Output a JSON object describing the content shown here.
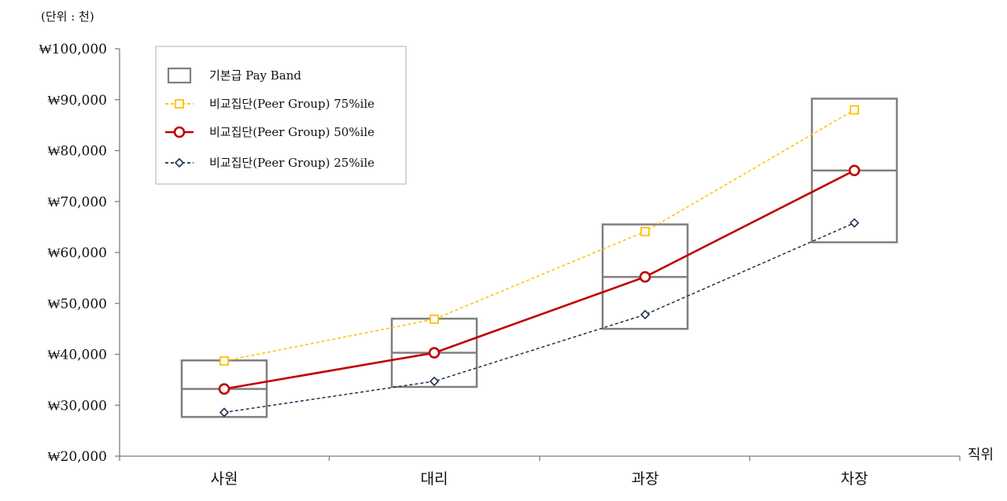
{
  "chart_data": {
    "type": "line",
    "unit_label": "(단위 : 천)",
    "xlabel": "직위",
    "ylabel": "",
    "categories": [
      "사원",
      "대리",
      "과장",
      "차장"
    ],
    "ylim": [
      20000,
      100000
    ],
    "yticks": [
      20000,
      30000,
      40000,
      50000,
      60000,
      70000,
      80000,
      90000,
      100000
    ],
    "ytick_labels": [
      "₩20,000",
      "₩30,000",
      "₩40,000",
      "₩50,000",
      "₩60,000",
      "₩70,000",
      "₩80,000",
      "₩90,000",
      "₩100,000"
    ],
    "pay_band": {
      "name": "기본급 Pay Band",
      "color": "#7f7f7f",
      "min": [
        27700,
        33600,
        45000,
        62000
      ],
      "mid": [
        33200,
        40300,
        55200,
        76100
      ],
      "max": [
        38800,
        47000,
        65500,
        90200
      ]
    },
    "series": [
      {
        "name": "비교집단(Peer Group) 75%ile",
        "values": [
          38700,
          46900,
          64100,
          88000
        ],
        "color": "#ffc000",
        "marker": "square",
        "line_style": "dashed"
      },
      {
        "name": "비교집단(Peer Group) 50%ile",
        "values": [
          33200,
          40300,
          55200,
          76100
        ],
        "color": "#c00000",
        "marker": "circle",
        "line_style": "solid"
      },
      {
        "name": "비교집단(Peer Group) 25%ile",
        "values": [
          28600,
          34700,
          47800,
          65800
        ],
        "color": "#1f2f4f",
        "marker": "diamond",
        "line_style": "dashed"
      }
    ],
    "legend_position": "top-left",
    "grid": false
  }
}
